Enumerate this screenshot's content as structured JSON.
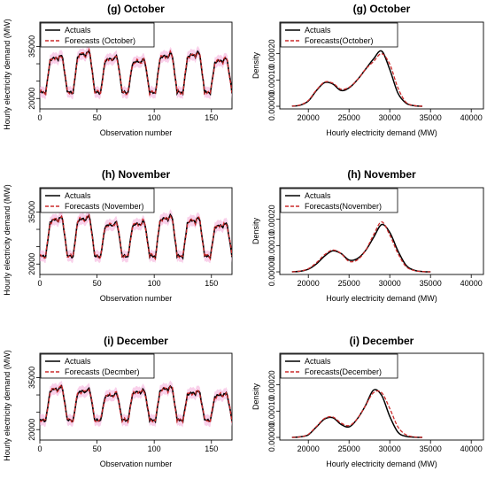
{
  "chart_data": [
    {
      "type": "line",
      "title": "(g) October",
      "xlabel": "Observation number",
      "ylabel": "Hourly electricity demand (MW)",
      "xlim": [
        0,
        168
      ],
      "ylim": [
        17000,
        42000
      ],
      "xticks": [
        0,
        50,
        100,
        150
      ],
      "yticks": [
        20000,
        25000,
        30000,
        35000
      ],
      "ytick_labels": [
        "20000",
        "",
        "",
        "35000"
      ],
      "legend": [
        "Actuals",
        "Forecasts (October)"
      ],
      "colors": {
        "actual": "#000000",
        "forecast": "#cc2b2b",
        "band": "#f4a9d8"
      },
      "daily_profile": {
        "base": 21500,
        "peak": 32500,
        "amplitude_variation": 1200
      },
      "days": 7
    },
    {
      "type": "line",
      "title": "(g) October",
      "xlabel": "Hourly electricity demand  (MW)",
      "ylabel": "Density",
      "xlim": [
        16500,
        41500
      ],
      "ylim": [
        -1e-05,
        0.00032
      ],
      "xticks": [
        20000,
        25000,
        30000,
        35000,
        40000
      ],
      "yticks": [
        0,
        0.0001,
        0.0002
      ],
      "ytick_labels": [
        "0.00000",
        "0.00010",
        "0.00020"
      ],
      "legend": [
        "Actuals",
        "Forecasts(October)"
      ],
      "colors": {
        "actual": "#000000",
        "forecast": "#cc2b2b"
      },
      "x": [
        18000,
        19000,
        20000,
        21000,
        22000,
        23000,
        24000,
        25000,
        26000,
        27000,
        28000,
        29000,
        30000,
        31000,
        32000,
        33000,
        34000
      ],
      "series": [
        {
          "name": "Actuals",
          "values": [
            5e-07,
            4e-06,
            2e-05,
            6e-05,
            9e-05,
            8.5e-05,
            6e-05,
            7e-05,
            0.0001,
            0.00014,
            0.00018,
            0.00021,
            0.00014,
            5e-05,
            1.2e-05,
            2e-06,
            0
          ]
        },
        {
          "name": "Forecasts(October)",
          "values": [
            5e-07,
            5e-06,
            2.2e-05,
            6.2e-05,
            9.2e-05,
            8.8e-05,
            6.5e-05,
            7.2e-05,
            0.0001,
            0.00014,
            0.00017,
            0.0002,
            0.00016,
            7e-05,
            1.5e-05,
            3e-06,
            0
          ]
        }
      ]
    },
    {
      "type": "line",
      "title": "(h) November",
      "xlabel": "Observation number",
      "ylabel": "Hourly electricity demand (MW)",
      "xlim": [
        0,
        168
      ],
      "ylim": [
        17000,
        42000
      ],
      "xticks": [
        0,
        50,
        100,
        150
      ],
      "yticks": [
        20000,
        25000,
        30000,
        35000
      ],
      "ytick_labels": [
        "20000",
        "",
        "",
        "35000"
      ],
      "legend": [
        "Actuals",
        "Forecasts (November)"
      ],
      "colors": {
        "actual": "#000000",
        "forecast": "#cc2b2b",
        "band": "#f4a9d8"
      },
      "daily_profile": {
        "base": 22000,
        "peak": 33000,
        "amplitude_variation": 1200
      },
      "days": 7
    },
    {
      "type": "line",
      "title": "(h) November",
      "xlabel": "Hourly electricity demand  (MW)",
      "ylabel": "Density",
      "xlim": [
        16500,
        41500
      ],
      "ylim": [
        -1e-05,
        0.00032
      ],
      "xticks": [
        20000,
        25000,
        30000,
        35000,
        40000
      ],
      "yticks": [
        0,
        0.0001,
        0.0002
      ],
      "ytick_labels": [
        "0.00000",
        "0.00010",
        "0.00020"
      ],
      "legend": [
        "Actuals",
        "Forecasts(November)"
      ],
      "colors": {
        "actual": "#000000",
        "forecast": "#cc2b2b"
      },
      "x": [
        18000,
        19000,
        20000,
        21000,
        22000,
        23000,
        24000,
        25000,
        26000,
        27000,
        28000,
        29000,
        30000,
        31000,
        32000,
        33000,
        34000,
        35000
      ],
      "series": [
        {
          "name": "Actuals",
          "values": [
            0,
            2e-06,
            1e-05,
            3e-05,
            6e-05,
            8e-05,
            7e-05,
            4.5e-05,
            5e-05,
            8e-05,
            0.00013,
            0.00018,
            0.00015,
            8e-05,
            2.5e-05,
            6e-06,
            1e-06,
            0
          ]
        },
        {
          "name": "Forecasts(November)",
          "values": [
            0,
            3e-06,
            1.2e-05,
            3.5e-05,
            6.5e-05,
            8.3e-05,
            7e-05,
            4e-05,
            4.5e-05,
            8e-05,
            0.00014,
            0.00019,
            0.00014,
            7e-05,
            2e-05,
            5e-06,
            1e-06,
            0
          ]
        }
      ]
    },
    {
      "type": "line",
      "title": "(i) December",
      "xlabel": "Observation number",
      "ylabel": "Hourly electricity demand (MW)",
      "xlim": [
        0,
        168
      ],
      "ylim": [
        17000,
        42000
      ],
      "xticks": [
        0,
        50,
        100,
        150
      ],
      "yticks": [
        20000,
        25000,
        30000,
        35000
      ],
      "ytick_labels": [
        "20000",
        "",
        "",
        "35000"
      ],
      "legend": [
        "Actuals",
        "Forecasts (Decmber)"
      ],
      "colors": {
        "actual": "#000000",
        "forecast": "#cc2b2b",
        "band": "#f4a9d8"
      },
      "daily_profile": {
        "base": 22500,
        "peak": 31500,
        "amplitude_variation": 1000
      },
      "days": 7
    },
    {
      "type": "line",
      "title": "(i) December",
      "xlabel": "Hourly electricity demand  (MW)",
      "ylabel": "Density",
      "xlim": [
        16500,
        41500
      ],
      "ylim": [
        -1e-05,
        0.00032
      ],
      "xticks": [
        20000,
        25000,
        30000,
        35000,
        40000
      ],
      "yticks": [
        0,
        0.0001,
        0.0002
      ],
      "ytick_labels": [
        "0.00000",
        "0.00010",
        "0.00020"
      ],
      "legend": [
        "Actuals",
        "Forecasts(December)"
      ],
      "colors": {
        "actual": "#000000",
        "forecast": "#cc2b2b"
      },
      "x": [
        18000,
        19000,
        20000,
        21000,
        22000,
        23000,
        24000,
        25000,
        26000,
        27000,
        28000,
        29000,
        30000,
        31000,
        32000,
        33000,
        34000
      ],
      "series": [
        {
          "name": "Actuals",
          "values": [
            0,
            2e-06,
            1e-05,
            4e-05,
            7e-05,
            7.5e-05,
            5e-05,
            4e-05,
            7e-05,
            0.00012,
            0.00018,
            0.00016,
            8e-05,
            2e-05,
            4e-06,
            1e-06,
            0
          ]
        },
        {
          "name": "Forecasts(December)",
          "values": [
            0,
            2e-06,
            1.2e-05,
            4.2e-05,
            7.2e-05,
            7.8e-05,
            5.5e-05,
            4.5e-05,
            7e-05,
            0.00012,
            0.00017,
            0.00017,
            0.00011,
            4e-05,
            1e-05,
            2e-06,
            0
          ]
        }
      ]
    }
  ]
}
